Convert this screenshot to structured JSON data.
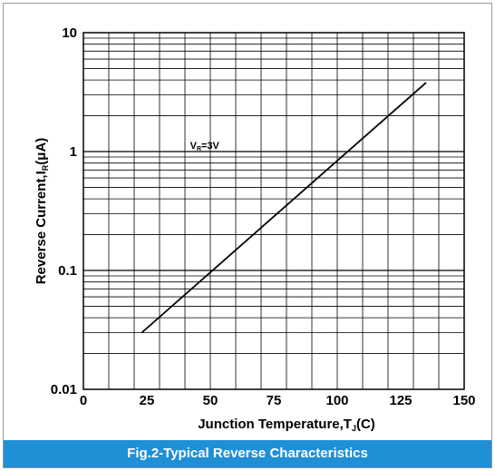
{
  "chart_data": {
    "type": "line",
    "title": "Fig.2-Typical Reverse Characteristics",
    "xlabel": "Junction  Temperature,T",
    "xlabel_sub": "J",
    "xlabel_unit": "(C)",
    "ylabel": "Reverse  Current,I",
    "ylabel_sub": "R",
    "ylabel_unit": "(μA)",
    "x_scale": "linear",
    "y_scale": "log",
    "xlim": [
      0,
      150
    ],
    "ylim": [
      0.01,
      10
    ],
    "x_ticks": [
      0,
      25,
      50,
      75,
      100,
      125,
      150
    ],
    "x_tick_labels": [
      "0",
      "25",
      "50",
      "75",
      "100",
      "125",
      "150"
    ],
    "y_ticks": [
      0.01,
      0.1,
      1,
      10
    ],
    "y_tick_labels": [
      "0.01",
      "0.1",
      "1",
      "10"
    ],
    "grid": true,
    "annotation": {
      "text": "V",
      "sub": "R",
      "rest": "=3V",
      "x": 42,
      "y": 1.05
    },
    "series": [
      {
        "x": [
          23,
          135
        ],
        "y": [
          0.03,
          3.8
        ]
      }
    ],
    "line_color": "#000000"
  }
}
